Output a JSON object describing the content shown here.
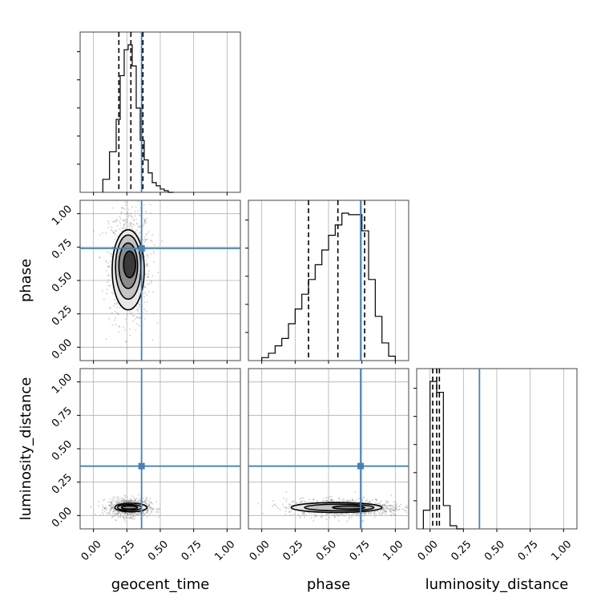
{
  "chart_data": {
    "type": "corner",
    "parameters": [
      "geocent_time",
      "phase",
      "luminosity_distance"
    ],
    "truths": [
      0.36,
      0.74,
      0.37
    ],
    "axis_range": [
      -0.1,
      1.1
    ],
    "ticks": [
      0.0,
      0.25,
      0.5,
      0.75,
      1.0
    ],
    "tick_labels": [
      "0.00",
      "0.25",
      "0.50",
      "0.75",
      "1.00"
    ],
    "grid": true,
    "colors": {
      "truth": "#4682b4",
      "hist": "#000000",
      "quantile": "#000000",
      "scatter": "#888888"
    },
    "marginals": [
      {
        "parameter": "geocent_time",
        "bin_edges": [
          0.07,
          0.12,
          0.17,
          0.2,
          0.23,
          0.26,
          0.29,
          0.32,
          0.35,
          0.38,
          0.41,
          0.44,
          0.47,
          0.5,
          0.53,
          0.56,
          0.6
        ],
        "counts": [
          0.08,
          0.25,
          0.45,
          0.72,
          0.88,
          0.91,
          0.78,
          0.52,
          0.32,
          0.2,
          0.12,
          0.06,
          0.04,
          0.02,
          0.01,
          0.0
        ],
        "quantiles": [
          0.19,
          0.28,
          0.37
        ]
      },
      {
        "parameter": "phase",
        "bin_edges": [
          0.0,
          0.05,
          0.1,
          0.15,
          0.2,
          0.25,
          0.3,
          0.35,
          0.4,
          0.45,
          0.5,
          0.55,
          0.6,
          0.65,
          0.7,
          0.75,
          0.8,
          0.85,
          0.9,
          0.95,
          1.0
        ],
        "counts": [
          0.02,
          0.05,
          0.1,
          0.15,
          0.25,
          0.35,
          0.45,
          0.55,
          0.65,
          0.75,
          0.85,
          0.92,
          1.0,
          0.99,
          0.99,
          0.88,
          0.55,
          0.3,
          0.12,
          0.03
        ],
        "quantiles": [
          0.35,
          0.57,
          0.77
        ]
      },
      {
        "parameter": "luminosity_distance",
        "bin_edges": [
          -0.05,
          0.0,
          0.05,
          0.1,
          0.15,
          0.2,
          0.25
        ],
        "counts": [
          0.12,
          0.95,
          0.88,
          0.15,
          0.02,
          0.0
        ],
        "quantiles": [
          0.02,
          0.05,
          0.07
        ]
      }
    ],
    "joint": [
      {
        "x_param": "geocent_time",
        "y_param": "phase",
        "center": [
          0.27,
          0.62
        ],
        "spread": [
          0.07,
          0.2
        ],
        "contour_levels": [
          {
            "center": [
              0.27,
              0.62
            ],
            "radii": [
              0.045,
              0.1
            ]
          },
          {
            "center": [
              0.26,
              0.61
            ],
            "radii": [
              0.07,
              0.17
            ]
          },
          {
            "center": [
              0.26,
              0.6
            ],
            "radii": [
              0.095,
              0.24
            ]
          },
          {
            "center": [
              0.26,
              0.58
            ],
            "radii": [
              0.12,
              0.3
            ]
          }
        ]
      },
      {
        "x_param": "geocent_time",
        "y_param": "luminosity_distance",
        "center": [
          0.27,
          0.06
        ],
        "spread": [
          0.07,
          0.03
        ],
        "contour_levels": [
          {
            "center": [
              0.27,
              0.06
            ],
            "radii": [
              0.06,
              0.012
            ]
          },
          {
            "center": [
              0.27,
              0.06
            ],
            "radii": [
              0.09,
              0.022
            ]
          },
          {
            "center": [
              0.28,
              0.06
            ],
            "radii": [
              0.12,
              0.032
            ]
          }
        ]
      },
      {
        "x_param": "phase",
        "y_param": "luminosity_distance",
        "center": [
          0.62,
          0.06
        ],
        "spread": [
          0.2,
          0.03
        ],
        "contour_levels": [
          {
            "center": [
              0.65,
              0.06
            ],
            "radii": [
              0.12,
              0.012
            ]
          },
          {
            "center": [
              0.58,
              0.06
            ],
            "radii": [
              0.26,
              0.025
            ]
          },
          {
            "center": [
              0.56,
              0.06
            ],
            "radii": [
              0.34,
              0.037
            ]
          }
        ]
      }
    ]
  }
}
